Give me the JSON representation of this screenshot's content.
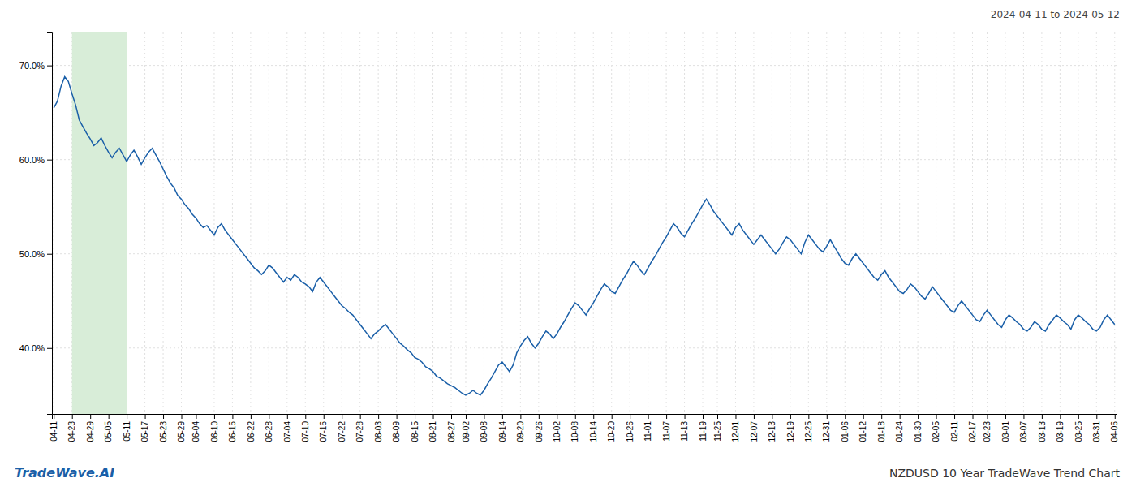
{
  "chart_data": {
    "type": "line",
    "title": "NZDUSD 10 Year TradeWave Trend Chart",
    "subtitle": "2024-04-11 to 2024-05-12",
    "annotations": [
      {
        "text": "TradeWave.AI"
      }
    ],
    "color": "#1a5fa8",
    "grid": true,
    "ylim": [
      33.0,
      73.5
    ],
    "yticks": [
      {
        "value": 40.0,
        "label": "40.0%"
      },
      {
        "value": 50.0,
        "label": "50.0%"
      },
      {
        "value": 60.0,
        "label": "60.0%"
      },
      {
        "value": 70.0,
        "label": "70.0%"
      }
    ],
    "shaded_range": {
      "start": "04-23",
      "end": "05-11",
      "color": "#d8edd8"
    },
    "categories": [
      "04-11",
      null,
      null,
      null,
      null,
      "04-23",
      null,
      null,
      null,
      null,
      "04-29",
      null,
      null,
      null,
      null,
      "05-05",
      null,
      null,
      null,
      null,
      "05-11",
      null,
      null,
      null,
      null,
      "05-17",
      null,
      null,
      null,
      null,
      "05-23",
      null,
      null,
      null,
      null,
      "05-29",
      null,
      null,
      null,
      "06-04",
      null,
      null,
      null,
      null,
      "06-10",
      null,
      null,
      null,
      null,
      "06-16",
      null,
      null,
      null,
      null,
      "06-22",
      null,
      null,
      null,
      null,
      "06-28",
      null,
      null,
      null,
      null,
      "07-04",
      null,
      null,
      null,
      null,
      "07-10",
      null,
      null,
      null,
      null,
      "07-16",
      null,
      null,
      null,
      null,
      "07-22",
      null,
      null,
      null,
      null,
      "07-28",
      null,
      null,
      null,
      null,
      "08-03",
      null,
      null,
      null,
      null,
      "08-09",
      null,
      null,
      null,
      null,
      "08-15",
      null,
      null,
      null,
      null,
      "08-21",
      null,
      null,
      null,
      null,
      "08-27",
      null,
      null,
      null,
      "09-02",
      null,
      null,
      null,
      null,
      "09-08",
      null,
      null,
      null,
      null,
      "09-14",
      null,
      null,
      null,
      null,
      "09-20",
      null,
      null,
      null,
      null,
      "09-26",
      null,
      null,
      null,
      null,
      "10-02",
      null,
      null,
      null,
      null,
      "10-08",
      null,
      null,
      null,
      null,
      "10-14",
      null,
      null,
      null,
      null,
      "10-20",
      null,
      null,
      null,
      null,
      "10-26",
      null,
      null,
      null,
      null,
      "11-01",
      null,
      null,
      null,
      null,
      "11-07",
      null,
      null,
      null,
      null,
      "11-13",
      null,
      null,
      null,
      null,
      "11-19",
      null,
      null,
      null,
      "11-25",
      null,
      null,
      null,
      null,
      "12-01",
      null,
      null,
      null,
      null,
      "12-07",
      null,
      null,
      null,
      null,
      "12-13",
      null,
      null,
      null,
      null,
      "12-19",
      null,
      null,
      null,
      null,
      "12-25",
      null,
      null,
      null,
      null,
      "12-31",
      null,
      null,
      null,
      null,
      "01-06",
      null,
      null,
      null,
      null,
      "01-12",
      null,
      null,
      null,
      null,
      "01-18",
      null,
      null,
      null,
      null,
      "01-24",
      null,
      null,
      null,
      null,
      "01-30",
      null,
      null,
      null,
      null,
      "02-05",
      null,
      null,
      null,
      null,
      "02-11",
      null,
      null,
      null,
      null,
      "02-17",
      null,
      null,
      null,
      "02-23",
      null,
      null,
      null,
      null,
      "03-01",
      null,
      null,
      null,
      null,
      "03-07",
      null,
      null,
      null,
      null,
      "03-13",
      null,
      null,
      null,
      null,
      "03-19",
      null,
      null,
      null,
      null,
      "03-25",
      null,
      null,
      null,
      null,
      "03-31",
      null,
      null,
      null,
      null,
      "04-06"
    ],
    "values": [
      65.5,
      66.2,
      67.8,
      68.8,
      68.3,
      67.0,
      65.8,
      64.2,
      63.5,
      62.8,
      62.2,
      61.5,
      61.8,
      62.3,
      61.5,
      60.8,
      60.2,
      60.8,
      61.2,
      60.5,
      59.8,
      60.5,
      61.0,
      60.3,
      59.5,
      60.2,
      60.8,
      61.2,
      60.5,
      59.8,
      59.0,
      58.2,
      57.5,
      57.0,
      56.2,
      55.8,
      55.2,
      54.8,
      54.2,
      53.8,
      53.2,
      52.8,
      53.0,
      52.5,
      52.0,
      52.8,
      53.2,
      52.5,
      52.0,
      51.5,
      51.0,
      50.5,
      50.0,
      49.5,
      49.0,
      48.5,
      48.2,
      47.8,
      48.2,
      48.8,
      48.5,
      48.0,
      47.5,
      47.0,
      47.5,
      47.2,
      47.8,
      47.5,
      47.0,
      46.8,
      46.5,
      46.0,
      47.0,
      47.5,
      47.0,
      46.5,
      46.0,
      45.5,
      45.0,
      44.5,
      44.2,
      43.8,
      43.5,
      43.0,
      42.5,
      42.0,
      41.5,
      41.0,
      41.5,
      41.8,
      42.2,
      42.5,
      42.0,
      41.5,
      41.0,
      40.5,
      40.2,
      39.8,
      39.5,
      39.0,
      38.8,
      38.5,
      38.0,
      37.8,
      37.5,
      37.0,
      36.8,
      36.5,
      36.2,
      36.0,
      35.8,
      35.5,
      35.2,
      35.0,
      35.2,
      35.5,
      35.2,
      35.0,
      35.5,
      36.2,
      36.8,
      37.5,
      38.2,
      38.5,
      38.0,
      37.5,
      38.2,
      39.5,
      40.2,
      40.8,
      41.2,
      40.5,
      40.0,
      40.5,
      41.2,
      41.8,
      41.5,
      41.0,
      41.5,
      42.2,
      42.8,
      43.5,
      44.2,
      44.8,
      44.5,
      44.0,
      43.5,
      44.2,
      44.8,
      45.5,
      46.2,
      46.8,
      46.5,
      46.0,
      45.8,
      46.5,
      47.2,
      47.8,
      48.5,
      49.2,
      48.8,
      48.2,
      47.8,
      48.5,
      49.2,
      49.8,
      50.5,
      51.2,
      51.8,
      52.5,
      53.2,
      52.8,
      52.2,
      51.8,
      52.5,
      53.2,
      53.8,
      54.5,
      55.2,
      55.8,
      55.2,
      54.5,
      54.0,
      53.5,
      53.0,
      52.5,
      52.0,
      52.8,
      53.2,
      52.5,
      52.0,
      51.5,
      51.0,
      51.5,
      52.0,
      51.5,
      51.0,
      50.5,
      50.0,
      50.5,
      51.2,
      51.8,
      51.5,
      51.0,
      50.5,
      50.0,
      51.2,
      52.0,
      51.5,
      51.0,
      50.5,
      50.2,
      50.8,
      51.5,
      50.8,
      50.2,
      49.5,
      49.0,
      48.8,
      49.5,
      50.0,
      49.5,
      49.0,
      48.5,
      48.0,
      47.5,
      47.2,
      47.8,
      48.2,
      47.5,
      47.0,
      46.5,
      46.0,
      45.8,
      46.2,
      46.8,
      46.5,
      46.0,
      45.5,
      45.2,
      45.8,
      46.5,
      46.0,
      45.5,
      45.0,
      44.5,
      44.0,
      43.8,
      44.5,
      45.0,
      44.5,
      44.0,
      43.5,
      43.0,
      42.8,
      43.5,
      44.0,
      43.5,
      43.0,
      42.5,
      42.2,
      43.0,
      43.5,
      43.2,
      42.8,
      42.5,
      42.0,
      41.8,
      42.2,
      42.8,
      42.5,
      42.0,
      41.8,
      42.5,
      43.0,
      43.5,
      43.2,
      42.8,
      42.5,
      42.0,
      43.0,
      43.5,
      43.2,
      42.8,
      42.5,
      42.0,
      41.8,
      42.2,
      43.0,
      43.5,
      43.0,
      42.5
    ]
  }
}
